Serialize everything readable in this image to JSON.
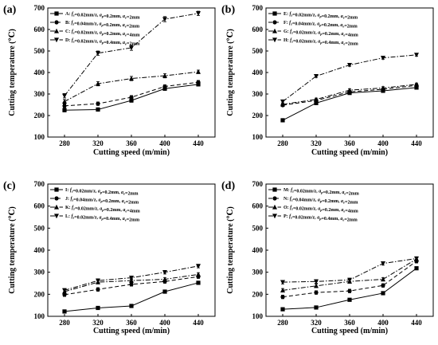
{
  "colors": {
    "line": "#000000",
    "background": "#ffffff"
  },
  "chart_data": [
    {
      "type": "line",
      "panel_label": "(a)",
      "xlabel": "Cutting speed (m/min)",
      "ylabel": "Cutting temperature (℃)",
      "x": [
        280,
        320,
        360,
        400,
        440
      ],
      "xlim": [
        260,
        460
      ],
      "ylim": [
        100,
        700
      ],
      "yticks": [
        100,
        200,
        300,
        400,
        500,
        600,
        700
      ],
      "legend_position": "top-left",
      "grid": false,
      "series": [
        {
          "name": "A: fz=0.02mm/z, ap=0.2mm, ae=2mm",
          "dash": "solid",
          "marker": "square",
          "values": [
            225,
            228,
            270,
            325,
            345
          ],
          "err": [
            8,
            8,
            8,
            8,
            8
          ]
        },
        {
          "name": "B: fz=0.04mm/z, ap=0.2mm, ae=2mm",
          "dash": "dash",
          "marker": "circle",
          "values": [
            245,
            255,
            285,
            335,
            355
          ],
          "err": [
            8,
            8,
            8,
            8,
            8
          ]
        },
        {
          "name": "C: fz=0.02mm/z, ap=0.2mm, ae=4mm",
          "dash": "dashdot",
          "marker": "triangle-up",
          "values": [
            265,
            348,
            372,
            385,
            403
          ],
          "err": [
            10,
            10,
            10,
            10,
            8
          ]
        },
        {
          "name": "D: fz=0.02mm/z, ap=0.4mm, ae=2mm",
          "dash": "dashdot",
          "marker": "triangle-down",
          "values": [
            292,
            490,
            515,
            648,
            675
          ],
          "err": [
            10,
            10,
            12,
            12,
            10
          ]
        }
      ]
    },
    {
      "type": "line",
      "panel_label": "(b)",
      "xlabel": "Cutting speed (m/min)",
      "ylabel": "Cutting temperature (℃)",
      "x": [
        280,
        320,
        360,
        400,
        440
      ],
      "xlim": [
        260,
        460
      ],
      "ylim": [
        100,
        700
      ],
      "yticks": [
        100,
        200,
        300,
        400,
        500,
        600,
        700
      ],
      "legend_position": "top-left",
      "grid": false,
      "series": [
        {
          "name": "E: fz=0.02mm/z, ap=0.2mm, ae=2mm",
          "dash": "solid",
          "marker": "square",
          "values": [
            178,
            258,
            305,
            315,
            330
          ],
          "err": [
            6,
            6,
            6,
            6,
            6
          ]
        },
        {
          "name": "F: fz=0.04mm/z, ap=0.2mm, ae=2mm",
          "dash": "dash",
          "marker": "circle",
          "values": [
            248,
            270,
            310,
            322,
            340
          ],
          "err": [
            6,
            6,
            6,
            6,
            6
          ]
        },
        {
          "name": "G: fz=0.02mm/z, ap=0.2mm, ae=4mm",
          "dash": "dashdot",
          "marker": "triangle-up",
          "values": [
            252,
            275,
            318,
            328,
            345
          ],
          "err": [
            6,
            6,
            6,
            6,
            6
          ]
        },
        {
          "name": "H: fz=0.02mm/z, ap=0.4mm, ae=2mm",
          "dash": "dashdot",
          "marker": "triangle-down",
          "values": [
            265,
            383,
            435,
            468,
            482
          ],
          "err": [
            6,
            6,
            6,
            6,
            6
          ]
        }
      ]
    },
    {
      "type": "line",
      "panel_label": "(c)",
      "xlabel": "Cutting speed (m/min)",
      "ylabel": "Cutting temperature (℃)",
      "x": [
        280,
        320,
        360,
        400,
        440
      ],
      "xlim": [
        260,
        460
      ],
      "ylim": [
        100,
        700
      ],
      "yticks": [
        100,
        200,
        300,
        400,
        500,
        600,
        700
      ],
      "legend_position": "top-left",
      "grid": false,
      "series": [
        {
          "name": "I: fz=0.02mm/z, ap=0.2mm, ae=2mm",
          "dash": "solid",
          "marker": "square",
          "values": [
            122,
            138,
            147,
            212,
            252
          ],
          "err": [
            6,
            6,
            6,
            6,
            6
          ]
        },
        {
          "name": "J: fz=0.04mm/z, ap=0.2mm, ae=2mm",
          "dash": "dash",
          "marker": "circle",
          "values": [
            198,
            222,
            245,
            258,
            280
          ],
          "err": [
            8,
            8,
            8,
            8,
            8
          ]
        },
        {
          "name": "K: fz=0.02mm/z, ap=0.2mm, ae=4mm",
          "dash": "dashdot",
          "marker": "triangle-up",
          "values": [
            212,
            255,
            262,
            268,
            290
          ],
          "err": [
            8,
            8,
            8,
            8,
            8
          ]
        },
        {
          "name": "L: fz=0.02mm/z, ap=0.4mm, ae=2mm",
          "dash": "dashdot",
          "marker": "triangle-down",
          "values": [
            218,
            262,
            275,
            300,
            328
          ],
          "err": [
            8,
            8,
            8,
            8,
            8
          ]
        }
      ]
    },
    {
      "type": "line",
      "panel_label": "(d)",
      "xlabel": "Cutting speed (m/min)",
      "ylabel": "Cutting temperature (℃)",
      "x": [
        280,
        320,
        360,
        400,
        440
      ],
      "xlim": [
        260,
        460
      ],
      "ylim": [
        100,
        700
      ],
      "yticks": [
        100,
        200,
        300,
        400,
        500,
        600,
        700
      ],
      "legend_position": "top-left",
      "grid": false,
      "series": [
        {
          "name": "M: fz=0.02mm/z, ap=0.2mm, ae=2mm",
          "dash": "solid",
          "marker": "square",
          "values": [
            132,
            140,
            175,
            205,
            318
          ],
          "err": [
            6,
            6,
            6,
            6,
            6
          ]
        },
        {
          "name": "N: fz=0.04mm/z, ap=0.2mm, ae=2mm",
          "dash": "dash",
          "marker": "circle",
          "values": [
            188,
            208,
            215,
            240,
            350
          ],
          "err": [
            8,
            8,
            8,
            8,
            8
          ]
        },
        {
          "name": "O: fz=0.02mm/z, ap=0.2mm, ae=4mm",
          "dash": "dashdot",
          "marker": "triangle-up",
          "values": [
            218,
            238,
            258,
            268,
            360
          ],
          "err": [
            8,
            8,
            8,
            8,
            8
          ]
        },
        {
          "name": "P: fz=0.02mm/z, ap=0.4mm, ae=2mm",
          "dash": "dashdot",
          "marker": "triangle-down",
          "values": [
            255,
            258,
            265,
            340,
            362
          ],
          "err": [
            8,
            8,
            8,
            8,
            8
          ]
        }
      ]
    }
  ]
}
